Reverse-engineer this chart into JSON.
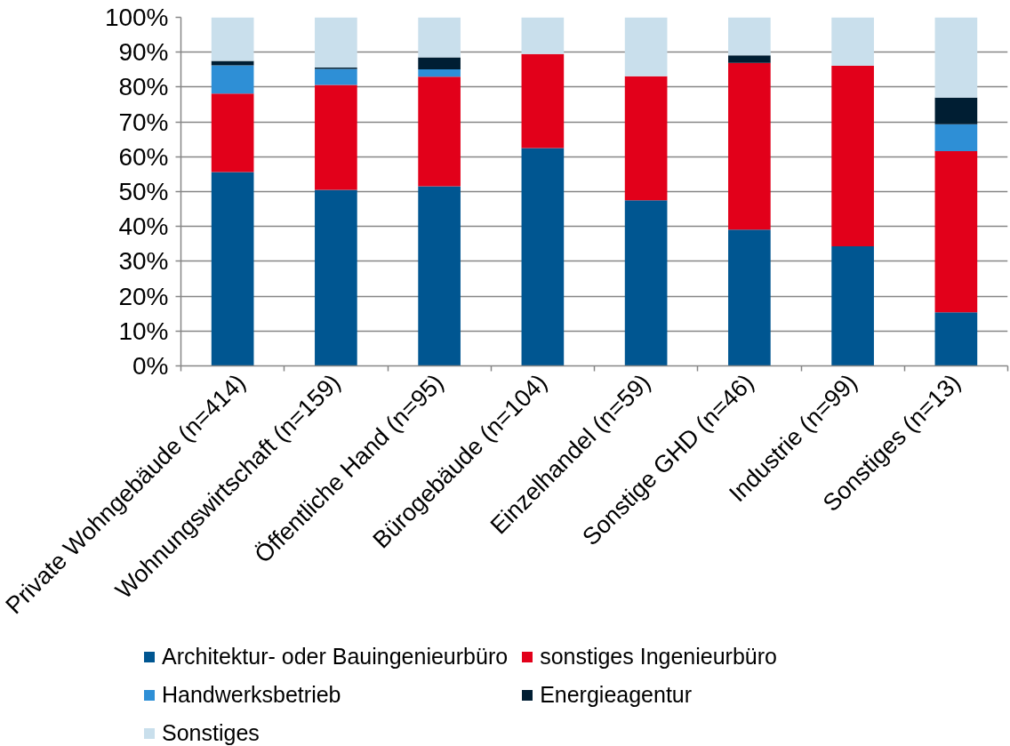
{
  "chart_data": {
    "type": "bar",
    "stacked": true,
    "categories": [
      "Private Wohngebäude (n=414)",
      "Wohnungswirtschaft (n=159)",
      "Öffentliche Hand (n=95)",
      "Bürogebäude (n=104)",
      "Einzelhandel (n=59)",
      "Sonstige GHD (n=46)",
      "Industrie (n=99)",
      "Sonstiges (n=13)"
    ],
    "series": [
      {
        "name": "Architektur- oder Bauingenieurbüro",
        "color": "#005691",
        "values": [
          55.6,
          50.5,
          51.5,
          62.5,
          47.5,
          39.1,
          34.3,
          15.4
        ]
      },
      {
        "name": "sonstiges Ingenieurbüro",
        "color": "#e2001a",
        "values": [
          22.5,
          30.1,
          31.5,
          27.0,
          35.6,
          47.8,
          51.8,
          46.2
        ]
      },
      {
        "name": "Handwerksbetrieb",
        "color": "#2e8fd6",
        "values": [
          8.1,
          4.6,
          2.1,
          0,
          0,
          0,
          0,
          7.7
        ]
      },
      {
        "name": "Energieagentur",
        "color": "#001e33",
        "values": [
          1.3,
          0.4,
          3.4,
          0,
          0,
          2.2,
          0,
          7.7
        ]
      },
      {
        "name": "Sonstiges",
        "color": "#c9dfec",
        "values": [
          12.5,
          14.4,
          11.5,
          10.5,
          16.9,
          10.9,
          13.9,
          23.0
        ]
      }
    ],
    "ylim": [
      0,
      100
    ],
    "yticks": [
      {
        "value": 0,
        "label": "0%"
      },
      {
        "value": 10,
        "label": "10%"
      },
      {
        "value": 20,
        "label": "20%"
      },
      {
        "value": 30,
        "label": "30%"
      },
      {
        "value": 40,
        "label": "40%"
      },
      {
        "value": 50,
        "label": "50%"
      },
      {
        "value": 60,
        "label": "60%"
      },
      {
        "value": 70,
        "label": "70%"
      },
      {
        "value": 80,
        "label": "80%"
      },
      {
        "value": 90,
        "label": "90%"
      },
      {
        "value": 100,
        "label": "100%"
      }
    ],
    "grid": "y",
    "legend": "bottom"
  }
}
